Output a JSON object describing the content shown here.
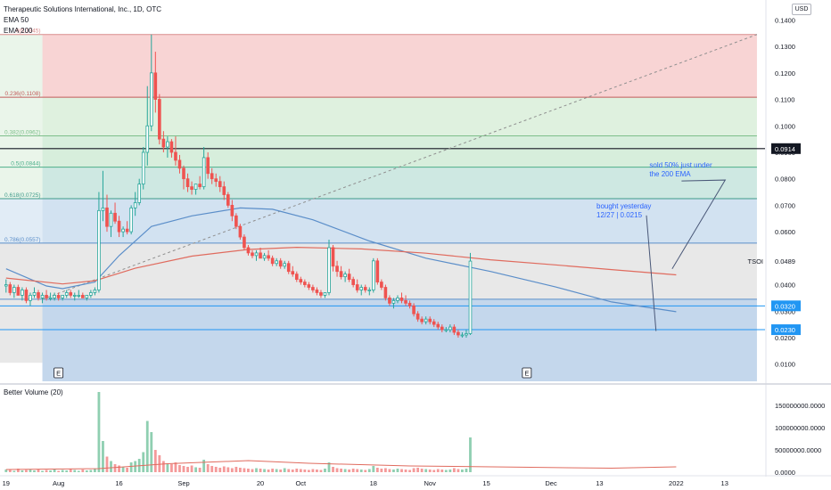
{
  "header": {
    "title": "Therapeutic Solutions International, Inc., 1D, OTC",
    "indicators": [
      "EMA 50",
      "EMA 200"
    ],
    "currency_button": "USD"
  },
  "colors": {
    "up": "#26a69a",
    "down": "#ef5350",
    "ema50": "#5b8ec9",
    "ema200": "#e06b5e",
    "volume_up": "#8fcfb1",
    "volume_down": "#f49a9a",
    "annotation": "#2962ff"
  },
  "chart_data": [
    {
      "type": "candlestick",
      "symbol": "TSOI",
      "last_price": "0.0489",
      "y_axis": {
        "ticks": [
          "0.1400",
          "0.1300",
          "0.1200",
          "0.1100",
          "0.1000",
          "0.0900",
          "0.0800",
          "0.0700",
          "0.0600",
          "0.0500",
          "0.0400",
          "0.0300",
          "0.0200",
          "0.0100"
        ],
        "range": [
          0.0035,
          0.1435
        ]
      },
      "x_axis": {
        "ticks": [
          {
            "label": "19",
            "day": 0
          },
          {
            "label": "Aug",
            "day": 13
          },
          {
            "label": "16",
            "day": 28
          },
          {
            "label": "Sep",
            "day": 44
          },
          {
            "label": "20",
            "day": 63
          },
          {
            "label": "Oct",
            "day": 73
          },
          {
            "label": "18",
            "day": 91
          },
          {
            "label": "Nov",
            "day": 105
          },
          {
            "label": "15",
            "day": 119
          },
          {
            "label": "Dec",
            "day": 135
          },
          {
            "label": "13",
            "day": 147
          },
          {
            "label": "2022",
            "day": 166
          },
          {
            "label": "13",
            "day": 178
          }
        ],
        "range": [
          -1.5,
          188
        ]
      },
      "fib_levels": [
        {
          "ratio": "0",
          "label": "0(0.1345)",
          "price": 0.1345,
          "fill": "#f7cfcf",
          "line": "#d98b8b"
        },
        {
          "ratio": "0.236",
          "label": "0.236(0.1108)",
          "price": 0.1108,
          "fill": "#dcf0dc",
          "line": "#c25a5a"
        },
        {
          "ratio": "0.382",
          "label": "0.382(0.0962)",
          "price": 0.0962,
          "fill": "#d3ecd8",
          "line": "#7dbf8a"
        },
        {
          "ratio": "0.5",
          "label": "0.5(0.0844)",
          "price": 0.0844,
          "fill": "#c9e6df",
          "line": "#4caf8a"
        },
        {
          "ratio": "0.618",
          "label": "0.618(0.0725)",
          "price": 0.0725,
          "fill": "#cddff0",
          "line": "#3d9a8a"
        },
        {
          "ratio": "0.786",
          "label": "0.786(0.0557)",
          "price": 0.0557,
          "fill": "#e6e6e6",
          "line": "#5b8ec9"
        },
        {
          "ratio": "1",
          "label": "",
          "price": 0.0345,
          "fill": "#bed3ea",
          "line": "#5b8ec9"
        }
      ],
      "fib_range": {
        "day_start": 9,
        "day_end": 186,
        "bottom": 0.0035
      },
      "horizontal_lines": [
        {
          "price": 0.0914,
          "label": "0.0914",
          "color": "#131722"
        },
        {
          "price": 0.032,
          "label": "0.0320",
          "color": "#2196f3"
        },
        {
          "price": 0.023,
          "label": "0.0230",
          "color": "#2196f3"
        }
      ],
      "trend_line": {
        "start": {
          "day": 9,
          "price": 0.0345
        },
        "end": {
          "day": 186,
          "price": 0.1345
        }
      },
      "earnings_markers": [
        {
          "day": 13,
          "label": "E"
        },
        {
          "day": 129,
          "label": "E"
        }
      ],
      "annotations": [
        {
          "text_lines": [
            "sold 50% just under",
            "the 200 EMA"
          ],
          "anchor_day": 166,
          "anchor_price": 0.0829,
          "target_day": 165,
          "target_price": 0.046
        },
        {
          "text_lines": [
            "bought yesterday",
            "12/27 | 0.0215"
          ],
          "anchor_day": 152,
          "anchor_price": 0.0675,
          "target_day": 161,
          "target_price": 0.0225
        }
      ],
      "ohlc_start_day": 0,
      "ohlc": [
        [
          0.0395,
          0.042,
          0.037,
          0.04
        ],
        [
          0.04,
          0.041,
          0.036,
          0.037
        ],
        [
          0.037,
          0.04,
          0.035,
          0.039
        ],
        [
          0.039,
          0.04,
          0.036,
          0.036
        ],
        [
          0.036,
          0.039,
          0.034,
          0.038
        ],
        [
          0.038,
          0.039,
          0.033,
          0.034
        ],
        [
          0.034,
          0.037,
          0.032,
          0.036
        ],
        [
          0.036,
          0.039,
          0.035,
          0.037
        ],
        [
          0.037,
          0.038,
          0.034,
          0.035
        ],
        [
          0.035,
          0.037,
          0.033,
          0.036
        ],
        [
          0.036,
          0.038,
          0.034,
          0.035
        ],
        [
          0.035,
          0.037,
          0.034,
          0.035
        ],
        [
          0.035,
          0.037,
          0.034,
          0.036
        ],
        [
          0.036,
          0.037,
          0.034,
          0.035
        ],
        [
          0.035,
          0.036,
          0.034,
          0.036
        ],
        [
          0.036,
          0.038,
          0.035,
          0.037
        ],
        [
          0.037,
          0.038,
          0.035,
          0.036
        ],
        [
          0.036,
          0.037,
          0.034,
          0.036
        ],
        [
          0.036,
          0.038,
          0.035,
          0.036
        ],
        [
          0.036,
          0.037,
          0.035,
          0.035
        ],
        [
          0.035,
          0.036,
          0.034,
          0.036
        ],
        [
          0.036,
          0.038,
          0.035,
          0.037
        ],
        [
          0.037,
          0.039,
          0.036,
          0.038
        ],
        [
          0.038,
          0.075,
          0.037,
          0.068
        ],
        [
          0.068,
          0.083,
          0.064,
          0.069
        ],
        [
          0.069,
          0.074,
          0.06,
          0.062
        ],
        [
          0.062,
          0.068,
          0.058,
          0.067
        ],
        [
          0.067,
          0.071,
          0.063,
          0.064
        ],
        [
          0.064,
          0.066,
          0.058,
          0.06
        ],
        [
          0.06,
          0.062,
          0.058,
          0.061
        ],
        [
          0.061,
          0.064,
          0.059,
          0.06
        ],
        [
          0.06,
          0.07,
          0.059,
          0.069
        ],
        [
          0.069,
          0.075,
          0.066,
          0.071
        ],
        [
          0.071,
          0.08,
          0.07,
          0.078
        ],
        [
          0.078,
          0.092,
          0.076,
          0.09
        ],
        [
          0.09,
          0.115,
          0.085,
          0.1
        ],
        [
          0.1,
          0.1345,
          0.098,
          0.12
        ],
        [
          0.12,
          0.128,
          0.105,
          0.11
        ],
        [
          0.11,
          0.112,
          0.093,
          0.095
        ],
        [
          0.095,
          0.098,
          0.09,
          0.092
        ],
        [
          0.092,
          0.096,
          0.088,
          0.094
        ],
        [
          0.094,
          0.095,
          0.088,
          0.09
        ],
        [
          0.09,
          0.096,
          0.085,
          0.087
        ],
        [
          0.087,
          0.089,
          0.082,
          0.084
        ],
        [
          0.084,
          0.085,
          0.076,
          0.08
        ],
        [
          0.08,
          0.082,
          0.075,
          0.077
        ],
        [
          0.077,
          0.079,
          0.074,
          0.076
        ],
        [
          0.076,
          0.078,
          0.074,
          0.078
        ],
        [
          0.078,
          0.081,
          0.076,
          0.077
        ],
        [
          0.077,
          0.092,
          0.076,
          0.088
        ],
        [
          0.088,
          0.09,
          0.08,
          0.082
        ],
        [
          0.082,
          0.084,
          0.078,
          0.08
        ],
        [
          0.08,
          0.082,
          0.077,
          0.079
        ],
        [
          0.079,
          0.081,
          0.075,
          0.077
        ],
        [
          0.077,
          0.079,
          0.072,
          0.074
        ],
        [
          0.074,
          0.075,
          0.069,
          0.07
        ],
        [
          0.07,
          0.072,
          0.064,
          0.066
        ],
        [
          0.066,
          0.067,
          0.061,
          0.062
        ],
        [
          0.062,
          0.063,
          0.057,
          0.058
        ],
        [
          0.058,
          0.059,
          0.053,
          0.054
        ],
        [
          0.054,
          0.055,
          0.051,
          0.052
        ],
        [
          0.052,
          0.053,
          0.05,
          0.051
        ],
        [
          0.051,
          0.053,
          0.049,
          0.052
        ],
        [
          0.052,
          0.054,
          0.05,
          0.05
        ],
        [
          0.05,
          0.052,
          0.049,
          0.051
        ],
        [
          0.051,
          0.053,
          0.049,
          0.05
        ],
        [
          0.05,
          0.051,
          0.047,
          0.048
        ],
        [
          0.048,
          0.05,
          0.047,
          0.049
        ],
        [
          0.049,
          0.05,
          0.046,
          0.047
        ],
        [
          0.047,
          0.049,
          0.046,
          0.048
        ],
        [
          0.048,
          0.049,
          0.044,
          0.045
        ],
        [
          0.045,
          0.047,
          0.043,
          0.044
        ],
        [
          0.044,
          0.045,
          0.041,
          0.042
        ],
        [
          0.042,
          0.043,
          0.04,
          0.041
        ],
        [
          0.041,
          0.042,
          0.039,
          0.04
        ],
        [
          0.04,
          0.041,
          0.038,
          0.039
        ],
        [
          0.039,
          0.04,
          0.037,
          0.038
        ],
        [
          0.038,
          0.039,
          0.036,
          0.037
        ],
        [
          0.037,
          0.038,
          0.035,
          0.036
        ],
        [
          0.036,
          0.037,
          0.035,
          0.037
        ],
        [
          0.037,
          0.057,
          0.036,
          0.054
        ],
        [
          0.054,
          0.055,
          0.045,
          0.047
        ],
        [
          0.047,
          0.049,
          0.043,
          0.045
        ],
        [
          0.045,
          0.047,
          0.042,
          0.043
        ],
        [
          0.043,
          0.045,
          0.041,
          0.044
        ],
        [
          0.044,
          0.046,
          0.041,
          0.042
        ],
        [
          0.042,
          0.043,
          0.039,
          0.04
        ],
        [
          0.04,
          0.042,
          0.037,
          0.038
        ],
        [
          0.038,
          0.04,
          0.036,
          0.039
        ],
        [
          0.039,
          0.04,
          0.037,
          0.038
        ],
        [
          0.038,
          0.039,
          0.036,
          0.038
        ],
        [
          0.038,
          0.05,
          0.037,
          0.049
        ],
        [
          0.049,
          0.05,
          0.04,
          0.041
        ],
        [
          0.041,
          0.042,
          0.038,
          0.039
        ],
        [
          0.039,
          0.04,
          0.034,
          0.035
        ],
        [
          0.035,
          0.036,
          0.032,
          0.033
        ],
        [
          0.033,
          0.035,
          0.031,
          0.034
        ],
        [
          0.034,
          0.036,
          0.033,
          0.035
        ],
        [
          0.035,
          0.037,
          0.033,
          0.034
        ],
        [
          0.034,
          0.036,
          0.032,
          0.033
        ],
        [
          0.033,
          0.034,
          0.031,
          0.032
        ],
        [
          0.032,
          0.033,
          0.028,
          0.029
        ],
        [
          0.029,
          0.03,
          0.026,
          0.027
        ],
        [
          0.027,
          0.028,
          0.025,
          0.026
        ],
        [
          0.026,
          0.028,
          0.025,
          0.027
        ],
        [
          0.027,
          0.028,
          0.025,
          0.026
        ],
        [
          0.026,
          0.027,
          0.024,
          0.025
        ],
        [
          0.025,
          0.026,
          0.023,
          0.024
        ],
        [
          0.024,
          0.025,
          0.022,
          0.023
        ],
        [
          0.023,
          0.024,
          0.022,
          0.023
        ],
        [
          0.023,
          0.025,
          0.022,
          0.024
        ],
        [
          0.024,
          0.025,
          0.021,
          0.022
        ],
        [
          0.022,
          0.023,
          0.02,
          0.021
        ],
        [
          0.021,
          0.022,
          0.02,
          0.021
        ],
        [
          0.021,
          0.023,
          0.02,
          0.0215
        ],
        [
          0.0215,
          0.052,
          0.021,
          0.0489
        ]
      ],
      "ema50": [
        {
          "day": 0,
          "price": 0.046
        },
        {
          "day": 10,
          "price": 0.0395
        },
        {
          "day": 14,
          "price": 0.0385
        },
        {
          "day": 22,
          "price": 0.041
        },
        {
          "day": 28,
          "price": 0.051
        },
        {
          "day": 36,
          "price": 0.062
        },
        {
          "day": 46,
          "price": 0.066
        },
        {
          "day": 58,
          "price": 0.069
        },
        {
          "day": 66,
          "price": 0.0685
        },
        {
          "day": 76,
          "price": 0.0645
        },
        {
          "day": 90,
          "price": 0.0565
        },
        {
          "day": 104,
          "price": 0.05
        },
        {
          "day": 120,
          "price": 0.045
        },
        {
          "day": 136,
          "price": 0.0392
        },
        {
          "day": 150,
          "price": 0.0335
        },
        {
          "day": 166,
          "price": 0.0298
        }
      ],
      "ema200": [
        {
          "day": 0,
          "price": 0.0425
        },
        {
          "day": 14,
          "price": 0.0403
        },
        {
          "day": 22,
          "price": 0.0415
        },
        {
          "day": 32,
          "price": 0.0462
        },
        {
          "day": 46,
          "price": 0.0508
        },
        {
          "day": 60,
          "price": 0.0533
        },
        {
          "day": 72,
          "price": 0.0541
        },
        {
          "day": 88,
          "price": 0.0535
        },
        {
          "day": 104,
          "price": 0.0519
        },
        {
          "day": 120,
          "price": 0.0494
        },
        {
          "day": 136,
          "price": 0.0475
        },
        {
          "day": 150,
          "price": 0.0457
        },
        {
          "day": 166,
          "price": 0.0437
        }
      ]
    },
    {
      "type": "bar",
      "title": "Better Volume (20)",
      "y_axis": {
        "ticks": [
          "150000000.0000",
          "100000000.0000",
          "50000000.0000",
          "0.0000"
        ],
        "range": [
          0,
          180000000
        ]
      },
      "volume_avg": [
        {
          "day": 0,
          "value": 6000000
        },
        {
          "day": 23,
          "value": 8000000
        },
        {
          "day": 40,
          "value": 19000000
        },
        {
          "day": 60,
          "value": 26000000
        },
        {
          "day": 75,
          "value": 20000000
        },
        {
          "day": 100,
          "value": 14000000
        },
        {
          "day": 130,
          "value": 11000000
        },
        {
          "day": 150,
          "value": 9000000
        },
        {
          "day": 166,
          "value": 12000000
        }
      ],
      "volume": [
        6000000.0,
        5000000.0,
        3000000.0,
        8000000.0,
        4000000.0,
        5000000.0,
        6000000.0,
        4000000.0,
        7000000.0,
        3000000.0,
        5000000.0,
        4000000.0,
        6000000.0,
        3000000.0,
        5000000.0,
        4000000.0,
        7000000.0,
        5000000.0,
        3000000.0,
        6000000.0,
        4000000.0,
        5000000.0,
        8000000.0,
        180000000.0,
        70000000.0,
        35000000.0,
        25000000.0,
        18000000.0,
        15000000.0,
        12000000.0,
        10000000.0,
        22000000.0,
        25000000.0,
        30000000.0,
        45000000.0,
        115000000.0,
        90000000.0,
        50000000.0,
        38000000.0,
        25000000.0,
        20000000.0,
        18000000.0,
        22000000.0,
        16000000.0,
        14000000.0,
        12000000.0,
        15000000.0,
        11000000.0,
        10000000.0,
        28000000.0,
        18000000.0,
        14000000.0,
        12000000.0,
        10000000.0,
        13000000.0,
        11000000.0,
        9000000.0,
        12000000.0,
        10000000.0,
        9000000.0,
        8000000.0,
        7000000.0,
        9000000.0,
        8000000.0,
        7000000.0,
        6000000.0,
        8000000.0,
        7000000.0,
        6000000.0,
        9000000.0,
        7000000.0,
        6000000.0,
        8000000.0,
        7000000.0,
        6000000.0,
        5000000.0,
        7000000.0,
        6000000.0,
        5000000.0,
        8000000.0,
        22000000.0,
        12000000.0,
        9000000.0,
        8000000.0,
        7000000.0,
        6000000.0,
        8000000.0,
        7000000.0,
        6000000.0,
        5000000.0,
        7000000.0,
        14000000.0,
        10000000.0,
        8000000.0,
        9000000.0,
        7000000.0,
        6000000.0,
        8000000.0,
        7000000.0,
        6000000.0,
        5000000.0,
        9000000.0,
        10000000.0,
        8000000.0,
        7000000.0,
        6000000.0,
        5000000.0,
        7000000.0,
        6000000.0,
        5000000.0,
        6000000.0,
        9000000.0,
        7000000.0,
        6000000.0,
        8000000.0,
        78000000.0
      ]
    }
  ]
}
